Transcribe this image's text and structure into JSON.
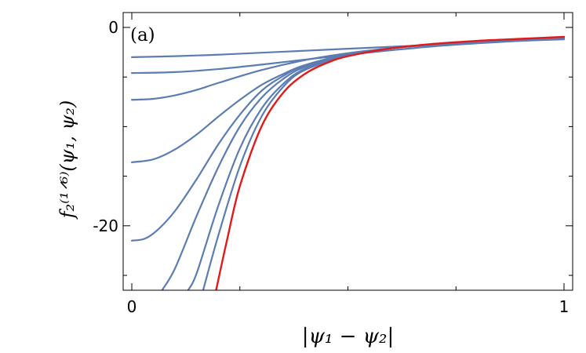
{
  "chart_data": {
    "type": "line",
    "panel_label": "(a)",
    "xlabel": "|ψ₁ − ψ₂|",
    "ylabel": "f₂⁽¹ᐟ⁶⁾(ψ₁, ψ₂)",
    "xlim": [
      -0.02,
      1.02
    ],
    "ylim": [
      -26.5,
      1.5
    ],
    "x_ticks": [
      0,
      1
    ],
    "x_tick_labels": [
      "0",
      "1"
    ],
    "y_ticks": [
      0,
      -20
    ],
    "y_tick_labels": [
      "0",
      "-20"
    ],
    "x_minor_ticks": [
      0.25,
      0.5,
      0.75
    ],
    "y_minor_ticks": [
      -5,
      -10,
      -15,
      -25
    ],
    "grid": false,
    "legend": "none",
    "colors": {
      "blue": "#5b7db1",
      "red": "#e31a1c"
    },
    "series": [
      {
        "color": "#5b7db1",
        "x": [
          0,
          0.1,
          0.2,
          0.3,
          0.4,
          0.5,
          0.6,
          0.7,
          0.8,
          0.9,
          1.0
        ],
        "y": [
          -3.0,
          -2.9,
          -2.75,
          -2.55,
          -2.35,
          -2.15,
          -1.95,
          -1.75,
          -1.55,
          -1.35,
          -1.2
        ]
      },
      {
        "color": "#5b7db1",
        "x": [
          0,
          0.1,
          0.2,
          0.3,
          0.4,
          0.5,
          0.6,
          0.7,
          0.8,
          0.9,
          1.0
        ],
        "y": [
          -4.6,
          -4.5,
          -4.2,
          -3.75,
          -3.25,
          -2.75,
          -2.3,
          -1.9,
          -1.6,
          -1.35,
          -1.15
        ]
      },
      {
        "color": "#5b7db1",
        "x": [
          0,
          0.05,
          0.1,
          0.15,
          0.2,
          0.3,
          0.4,
          0.5,
          0.6,
          0.7,
          0.8,
          0.9,
          1.0
        ],
        "y": [
          -7.3,
          -7.2,
          -6.85,
          -6.3,
          -5.6,
          -4.3,
          -3.3,
          -2.6,
          -2.1,
          -1.75,
          -1.5,
          -1.3,
          -1.15
        ]
      },
      {
        "color": "#5b7db1",
        "x": [
          0,
          0.05,
          0.1,
          0.15,
          0.2,
          0.25,
          0.3,
          0.35,
          0.4,
          0.5,
          0.6,
          0.7,
          0.8,
          0.9,
          1.0
        ],
        "y": [
          -13.6,
          -13.3,
          -12.3,
          -10.8,
          -9.0,
          -7.3,
          -5.8,
          -4.7,
          -3.8,
          -2.7,
          -2.1,
          -1.7,
          -1.45,
          -1.25,
          -1.1
        ]
      },
      {
        "color": "#5b7db1",
        "x": [
          0,
          0.03,
          0.06,
          0.1,
          0.15,
          0.2,
          0.25,
          0.3,
          0.35,
          0.4,
          0.5,
          0.6,
          0.7,
          0.8,
          0.9,
          1.0
        ],
        "y": [
          -21.5,
          -21.3,
          -20.4,
          -18.5,
          -15.3,
          -11.8,
          -8.8,
          -6.4,
          -4.9,
          -3.85,
          -2.75,
          -2.1,
          -1.7,
          -1.45,
          -1.25,
          -1.1
        ]
      },
      {
        "color": "#5b7db1",
        "x": [
          0.07,
          0.1,
          0.15,
          0.2,
          0.25,
          0.3,
          0.35,
          0.4,
          0.5,
          0.6,
          0.7,
          0.8,
          0.9,
          1.0
        ],
        "y": [
          -26.5,
          -24.3,
          -19.0,
          -14.1,
          -10.0,
          -7.1,
          -5.2,
          -4.0,
          -2.8,
          -2.1,
          -1.7,
          -1.45,
          -1.25,
          -1.1
        ]
      },
      {
        "color": "#5b7db1",
        "x": [
          0.13,
          0.15,
          0.2,
          0.25,
          0.3,
          0.35,
          0.4,
          0.5,
          0.6,
          0.7,
          0.8,
          0.9,
          1.0
        ],
        "y": [
          -26.5,
          -24.8,
          -18.0,
          -12.2,
          -8.2,
          -5.7,
          -4.2,
          -2.85,
          -2.1,
          -1.7,
          -1.45,
          -1.25,
          -1.1
        ]
      },
      {
        "color": "#5b7db1",
        "x": [
          0.165,
          0.2,
          0.25,
          0.3,
          0.35,
          0.4,
          0.5,
          0.6,
          0.7,
          0.8,
          0.9,
          1.0
        ],
        "y": [
          -26.5,
          -21.0,
          -14.0,
          -9.0,
          -6.0,
          -4.3,
          -2.85,
          -2.1,
          -1.7,
          -1.45,
          -1.25,
          -1.1
        ]
      },
      {
        "color": "#e31a1c",
        "x": [
          0.195,
          0.22,
          0.25,
          0.3,
          0.35,
          0.4,
          0.45,
          0.5,
          0.6,
          0.7,
          0.8,
          0.9,
          1.0
        ],
        "y": [
          -26.5,
          -21.5,
          -16.0,
          -10.0,
          -6.6,
          -4.7,
          -3.6,
          -2.9,
          -2.1,
          -1.65,
          -1.35,
          -1.15,
          -0.95
        ]
      }
    ]
  }
}
